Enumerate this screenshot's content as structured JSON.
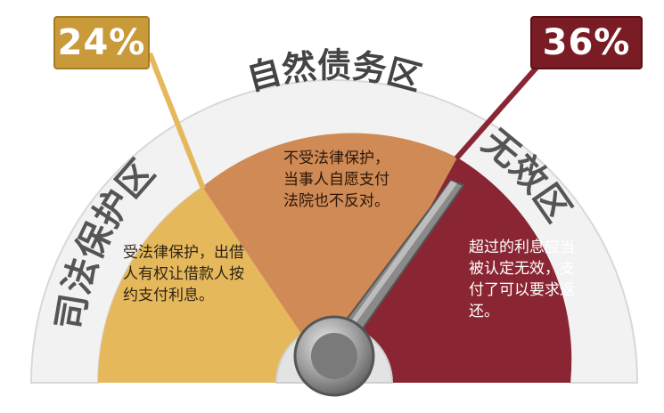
{
  "thresholds": {
    "left_percent": "24%",
    "right_percent": "36%"
  },
  "zones": {
    "left": {
      "label": "司法保护区",
      "desc": "受法律保护，出借人有权让借款人按约支付利息。",
      "color": "#e6b85c"
    },
    "middle": {
      "label": "自然债务区",
      "desc": "不受法律保护，当事人自愿支付法院也不反对。",
      "color": "#cf8a55"
    },
    "right": {
      "label": "无效区",
      "desc": "超过的利息应当被认定无效，支付了可以要求返还。",
      "color": "#8a2633"
    }
  },
  "colors": {
    "gold": "#c99a3a",
    "maroon": "#7a1c24",
    "band": "#eeeeee",
    "needle": "#7a7a7a"
  },
  "icons": {
    "needle": "gauge-needle-icon",
    "hub": "gauge-hub-icon"
  }
}
